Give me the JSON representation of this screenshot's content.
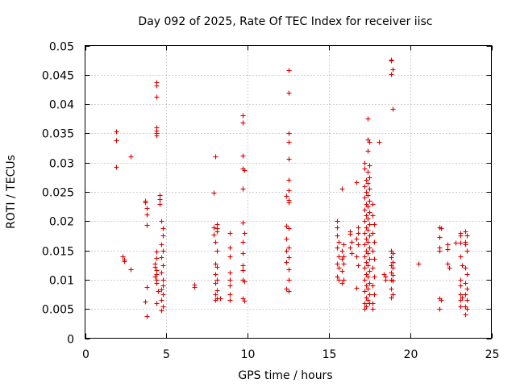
{
  "chart_data": {
    "type": "scatter",
    "title": "Day 092 of 2025, Rate Of TEC Index for receiver iisc",
    "xlabel": "GPS time / hours",
    "ylabel": "ROTI / TECUs",
    "xlim": [
      0,
      25
    ],
    "ylim": [
      0,
      0.05
    ],
    "xticks": [
      0,
      5,
      10,
      15,
      20,
      25
    ],
    "xtick_labels": [
      "0",
      "5",
      "10",
      "15",
      "20",
      "25"
    ],
    "yticks": [
      0,
      0.005,
      0.01,
      0.015,
      0.02,
      0.025,
      0.03,
      0.035,
      0.04,
      0.045,
      0.05
    ],
    "ytick_labels": [
      "0",
      "0.005",
      "0.01",
      "0.015",
      "0.02",
      "0.025",
      "0.03",
      "0.035",
      "0.04",
      "0.045",
      "0.05"
    ],
    "grid": true,
    "marker": "+",
    "color": "#dd0000",
    "series": [
      {
        "name": "ROTI",
        "points": [
          [
            1.9,
            0.0353
          ],
          [
            1.9,
            0.0338
          ],
          [
            1.9,
            0.0293
          ],
          [
            2.3,
            0.014
          ],
          [
            2.4,
            0.0134
          ],
          [
            2.4,
            0.0131
          ],
          [
            2.8,
            0.031
          ],
          [
            2.8,
            0.0118
          ],
          [
            3.7,
            0.0235
          ],
          [
            3.7,
            0.0232
          ],
          [
            3.8,
            0.0222
          ],
          [
            3.8,
            0.0211
          ],
          [
            3.8,
            0.0194
          ],
          [
            3.8,
            0.0087
          ],
          [
            3.7,
            0.0062
          ],
          [
            3.8,
            0.0038
          ],
          [
            4.4,
            0.0437
          ],
          [
            4.4,
            0.0432
          ],
          [
            4.4,
            0.0412
          ],
          [
            4.4,
            0.036
          ],
          [
            4.4,
            0.0355
          ],
          [
            4.4,
            0.035
          ],
          [
            4.4,
            0.0347
          ],
          [
            4.4,
            0.0148
          ],
          [
            4.4,
            0.0137
          ],
          [
            4.3,
            0.0128
          ],
          [
            4.3,
            0.0122
          ],
          [
            4.4,
            0.0116
          ],
          [
            4.4,
            0.011
          ],
          [
            4.3,
            0.0105
          ],
          [
            4.4,
            0.01
          ],
          [
            4.4,
            0.0095
          ],
          [
            4.5,
            0.008
          ],
          [
            4.4,
            0.006
          ],
          [
            4.6,
            0.0245
          ],
          [
            4.6,
            0.0238
          ],
          [
            4.6,
            0.023
          ],
          [
            4.7,
            0.02
          ],
          [
            4.8,
            0.0188
          ],
          [
            4.8,
            0.0175
          ],
          [
            4.7,
            0.016
          ],
          [
            4.8,
            0.015
          ],
          [
            4.7,
            0.0138
          ],
          [
            4.8,
            0.0125
          ],
          [
            4.7,
            0.0112
          ],
          [
            4.8,
            0.01
          ],
          [
            4.8,
            0.009
          ],
          [
            4.7,
            0.0083
          ],
          [
            4.8,
            0.0075
          ],
          [
            4.7,
            0.0065
          ],
          [
            4.8,
            0.0055
          ],
          [
            4.7,
            0.0047
          ],
          [
            6.7,
            0.0092
          ],
          [
            6.7,
            0.0088
          ],
          [
            7.9,
            0.0249
          ],
          [
            7.9,
            0.019
          ],
          [
            7.9,
            0.0177
          ],
          [
            8.0,
            0.0311
          ],
          [
            8.1,
            0.0195
          ],
          [
            8.1,
            0.0188
          ],
          [
            8.1,
            0.0182
          ],
          [
            8.0,
            0.0165
          ],
          [
            8.1,
            0.015
          ],
          [
            8.0,
            0.0128
          ],
          [
            8.1,
            0.0122
          ],
          [
            8.0,
            0.011
          ],
          [
            8.1,
            0.01
          ],
          [
            8.0,
            0.0095
          ],
          [
            8.1,
            0.0082
          ],
          [
            8.0,
            0.0075
          ],
          [
            8.1,
            0.0068
          ],
          [
            8.0,
            0.0065
          ],
          [
            8.3,
            0.0068
          ],
          [
            8.9,
            0.018
          ],
          [
            8.9,
            0.0155
          ],
          [
            8.9,
            0.014
          ],
          [
            8.9,
            0.0112
          ],
          [
            8.9,
            0.01
          ],
          [
            8.9,
            0.009
          ],
          [
            8.9,
            0.0075
          ],
          [
            8.9,
            0.0065
          ],
          [
            9.7,
            0.0381
          ],
          [
            9.7,
            0.0369
          ],
          [
            9.7,
            0.0312
          ],
          [
            9.7,
            0.029
          ],
          [
            9.8,
            0.0287
          ],
          [
            9.7,
            0.0255
          ],
          [
            9.7,
            0.0197
          ],
          [
            9.8,
            0.018
          ],
          [
            9.7,
            0.0165
          ],
          [
            9.7,
            0.0145
          ],
          [
            9.7,
            0.0125
          ],
          [
            9.7,
            0.0117
          ],
          [
            9.7,
            0.01
          ],
          [
            9.8,
            0.0097
          ],
          [
            9.7,
            0.0068
          ],
          [
            9.8,
            0.0064
          ],
          [
            12.5,
            0.0458
          ],
          [
            12.5,
            0.0419
          ],
          [
            12.5,
            0.035
          ],
          [
            12.5,
            0.0335
          ],
          [
            12.5,
            0.0307
          ],
          [
            12.5,
            0.027
          ],
          [
            12.5,
            0.0253
          ],
          [
            12.4,
            0.0243
          ],
          [
            12.5,
            0.0236
          ],
          [
            12.5,
            0.0232
          ],
          [
            12.4,
            0.0192
          ],
          [
            12.5,
            0.0188
          ],
          [
            12.4,
            0.017
          ],
          [
            12.5,
            0.0155
          ],
          [
            12.4,
            0.015
          ],
          [
            12.5,
            0.0138
          ],
          [
            12.4,
            0.013
          ],
          [
            12.5,
            0.0118
          ],
          [
            12.5,
            0.01
          ],
          [
            12.4,
            0.0085
          ],
          [
            12.5,
            0.008
          ],
          [
            15.5,
            0.02
          ],
          [
            15.5,
            0.019
          ],
          [
            15.5,
            0.0175
          ],
          [
            15.6,
            0.0165
          ],
          [
            15.5,
            0.0155
          ],
          [
            15.6,
            0.014
          ],
          [
            15.5,
            0.0127
          ],
          [
            15.6,
            0.012
          ],
          [
            15.5,
            0.0105
          ],
          [
            15.6,
            0.01
          ],
          [
            15.8,
            0.0255
          ],
          [
            15.9,
            0.016
          ],
          [
            15.8,
            0.015
          ],
          [
            15.9,
            0.014
          ],
          [
            15.8,
            0.0135
          ],
          [
            15.9,
            0.0128
          ],
          [
            15.8,
            0.0115
          ],
          [
            15.9,
            0.01
          ],
          [
            15.8,
            0.0095
          ],
          [
            16.3,
            0.0183
          ],
          [
            16.3,
            0.0178
          ],
          [
            16.4,
            0.0165
          ],
          [
            16.3,
            0.0155
          ],
          [
            16.4,
            0.0145
          ],
          [
            16.7,
            0.0267
          ],
          [
            16.8,
            0.019
          ],
          [
            16.8,
            0.018
          ],
          [
            16.7,
            0.017
          ],
          [
            16.8,
            0.016
          ],
          [
            16.7,
            0.014
          ],
          [
            16.8,
            0.0125
          ],
          [
            16.7,
            0.0086
          ],
          [
            17.2,
            0.03
          ],
          [
            17.2,
            0.029
          ],
          [
            17.3,
            0.027
          ],
          [
            17.2,
            0.026
          ],
          [
            17.3,
            0.025
          ],
          [
            17.2,
            0.024
          ],
          [
            17.3,
            0.023
          ],
          [
            17.2,
            0.022
          ],
          [
            17.3,
            0.021
          ],
          [
            17.2,
            0.02
          ],
          [
            17.3,
            0.019
          ],
          [
            17.2,
            0.018
          ],
          [
            17.3,
            0.017
          ],
          [
            17.2,
            0.016
          ],
          [
            17.3,
            0.015
          ],
          [
            17.2,
            0.014
          ],
          [
            17.3,
            0.013
          ],
          [
            17.2,
            0.012
          ],
          [
            17.3,
            0.011
          ],
          [
            17.2,
            0.01
          ],
          [
            17.3,
            0.009
          ],
          [
            17.2,
            0.008
          ],
          [
            17.3,
            0.007
          ],
          [
            17.2,
            0.006
          ],
          [
            17.3,
            0.0055
          ],
          [
            17.2,
            0.005
          ],
          [
            17.4,
            0.0375
          ],
          [
            17.4,
            0.034
          ],
          [
            17.5,
            0.0335
          ],
          [
            17.4,
            0.032
          ],
          [
            17.5,
            0.0295
          ],
          [
            17.4,
            0.0285
          ],
          [
            17.5,
            0.0275
          ],
          [
            17.4,
            0.0265
          ],
          [
            17.5,
            0.0255
          ],
          [
            17.4,
            0.0245
          ],
          [
            17.5,
            0.0235
          ],
          [
            17.4,
            0.0225
          ],
          [
            17.5,
            0.0215
          ],
          [
            17.4,
            0.0205
          ],
          [
            17.5,
            0.0195
          ],
          [
            17.4,
            0.0185
          ],
          [
            17.5,
            0.0175
          ],
          [
            17.4,
            0.0165
          ],
          [
            17.5,
            0.0155
          ],
          [
            17.4,
            0.0145
          ],
          [
            17.5,
            0.0135
          ],
          [
            17.4,
            0.0125
          ],
          [
            17.5,
            0.0115
          ],
          [
            17.4,
            0.0105
          ],
          [
            17.5,
            0.0095
          ],
          [
            17.4,
            0.0085
          ],
          [
            17.5,
            0.0075
          ],
          [
            17.4,
            0.0065
          ],
          [
            17.5,
            0.006
          ],
          [
            17.7,
            0.023
          ],
          [
            17.7,
            0.021
          ],
          [
            17.8,
            0.0195
          ],
          [
            17.7,
            0.018
          ],
          [
            17.8,
            0.0165
          ],
          [
            17.7,
            0.015
          ],
          [
            17.8,
            0.0135
          ],
          [
            17.7,
            0.012
          ],
          [
            17.8,
            0.0105
          ],
          [
            17.7,
            0.009
          ],
          [
            17.8,
            0.0075
          ],
          [
            17.7,
            0.006
          ],
          [
            17.7,
            0.005
          ],
          [
            18.1,
            0.0336
          ],
          [
            18.4,
            0.011
          ],
          [
            18.5,
            0.0105
          ],
          [
            18.5,
            0.01
          ],
          [
            18.8,
            0.0476
          ],
          [
            18.8,
            0.0475
          ],
          [
            18.9,
            0.046
          ],
          [
            18.8,
            0.0451
          ],
          [
            18.9,
            0.0392
          ],
          [
            18.8,
            0.015
          ],
          [
            18.9,
            0.0145
          ],
          [
            18.8,
            0.0138
          ],
          [
            18.9,
            0.013
          ],
          [
            18.8,
            0.0125
          ],
          [
            18.9,
            0.012
          ],
          [
            18.8,
            0.0112
          ],
          [
            18.9,
            0.0108
          ],
          [
            18.8,
            0.01
          ],
          [
            18.9,
            0.0098
          ],
          [
            18.8,
            0.0085
          ],
          [
            18.9,
            0.0075
          ],
          [
            18.8,
            0.007
          ],
          [
            20.5,
            0.0128
          ],
          [
            21.8,
            0.019
          ],
          [
            21.9,
            0.0188
          ],
          [
            21.8,
            0.0173
          ],
          [
            21.8,
            0.0155
          ],
          [
            21.8,
            0.015
          ],
          [
            21.8,
            0.0068
          ],
          [
            21.9,
            0.0066
          ],
          [
            21.8,
            0.005
          ],
          [
            22.3,
            0.016
          ],
          [
            22.3,
            0.0152
          ],
          [
            22.3,
            0.0128
          ],
          [
            22.4,
            0.012
          ],
          [
            22.8,
            0.0163
          ],
          [
            23.1,
            0.018
          ],
          [
            23.1,
            0.0175
          ],
          [
            23.1,
            0.0163
          ],
          [
            23.1,
            0.014
          ],
          [
            23.2,
            0.0125
          ],
          [
            23.1,
            0.01
          ],
          [
            23.1,
            0.009
          ],
          [
            23.1,
            0.0075
          ],
          [
            23.2,
            0.007
          ],
          [
            23.1,
            0.0065
          ],
          [
            23.1,
            0.0055
          ],
          [
            23.4,
            0.0182
          ],
          [
            23.5,
            0.0175
          ],
          [
            23.4,
            0.0165
          ],
          [
            23.4,
            0.016
          ],
          [
            23.5,
            0.015
          ],
          [
            23.4,
            0.012
          ],
          [
            23.5,
            0.011
          ],
          [
            23.4,
            0.0095
          ],
          [
            23.5,
            0.0085
          ],
          [
            23.4,
            0.0075
          ],
          [
            23.5,
            0.0065
          ],
          [
            23.4,
            0.0055
          ],
          [
            23.5,
            0.005
          ],
          [
            23.4,
            0.004
          ]
        ]
      }
    ]
  }
}
